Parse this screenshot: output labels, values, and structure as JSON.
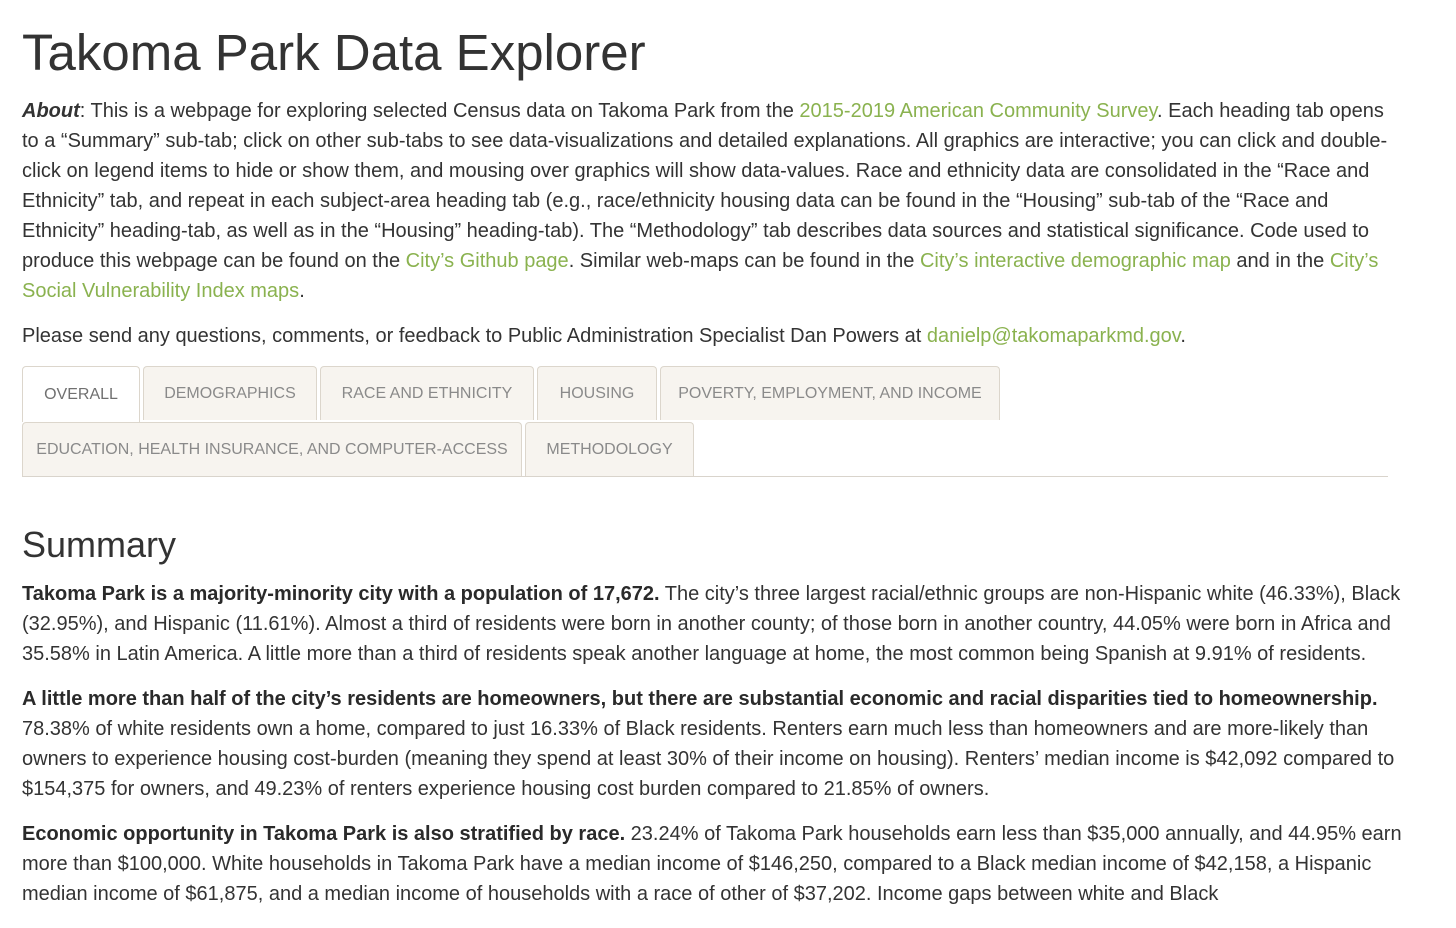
{
  "page": {
    "title": "Takoma Park Data Explorer"
  },
  "about": {
    "label": "About",
    "t1": ": This is a webpage for exploring selected Census data on Takoma Park from the ",
    "link_acs": "2015-2019 American Community Survey",
    "t2": ". Each heading tab opens to a “Summary” sub-tab; click on other sub-tabs to see data-visualizations and detailed explanations. All graphics are interactive; you can click and double-click on legend items to hide or show them, and mousing over graphics will show data-values. Race and ethnicity data are consolidated in the “Race and Ethnicity” tab, and repeat in each subject-area heading tab (e.g., race/ethnicity housing data can be found in the “Housing” sub-tab of the “Race and Ethnicity” heading-tab, as well as in the “Housing” heading-tab). The “Methodology” tab describes data sources and statistical significance. Code used to produce this webpage can be found on the ",
    "link_github": "City’s Github page",
    "t3": ". Similar web-maps can be found in the ",
    "link_demomap": "City’s interactive demographic map",
    "t4": " and in the ",
    "link_svi": "City’s Social Vulnerability Index maps",
    "t5": "."
  },
  "contact": {
    "text": "Please send any questions, comments, or feedback to Public Administration Specialist Dan Powers at ",
    "email": "danielp@takomaparkmd.gov",
    "end": "."
  },
  "tabs": [
    {
      "label": "Overall",
      "active": true
    },
    {
      "label": "Demographics"
    },
    {
      "label": "Race and Ethnicity"
    },
    {
      "label": "Housing"
    },
    {
      "label": "Poverty, Employment, and Income"
    },
    {
      "label": "Education, Health Insurance, and Computer-Access"
    },
    {
      "label": "Methodology"
    }
  ],
  "summary": {
    "heading": "Summary",
    "p1_bold": "Takoma Park is a majority-minority city with a population of 17,672.",
    "p1_text": " The city’s three largest racial/ethnic groups are non-Hispanic white (46.33%), Black (32.95%), and Hispanic (11.61%). Almost a third of residents were born in another county; of those born in another country, 44.05% were born in Africa and 35.58% in Latin America. A little more than a third of residents speak another language at home, the most common being Spanish at 9.91% of residents.",
    "p2_bold": "A little more than half of the city’s residents are homeowners, but there are substantial economic and racial disparities tied to homeownership.",
    "p2_text": " 78.38% of white residents own a home, compared to just 16.33% of Black residents. Renters earn much less than homeowners and are more-likely than owners to experience housing cost-burden (meaning they spend at least 30% of their income on housing). Renters’ median income is $42,092 compared to $154,375 for owners, and 49.23% of renters experience housing cost burden compared to 21.85% of owners.",
    "p3_bold": "Economic opportunity in Takoma Park is also stratified by race.",
    "p3_text": " 23.24% of Takoma Park households earn less than $35,000 annually, and 44.95% earn more than $100,000. White households in Takoma Park have a median income of $146,250, compared to a Black median income of $42,158, a Hispanic median income of $61,875, and a median income of households with a race of other of $37,202. Income gaps between white and Black"
  }
}
